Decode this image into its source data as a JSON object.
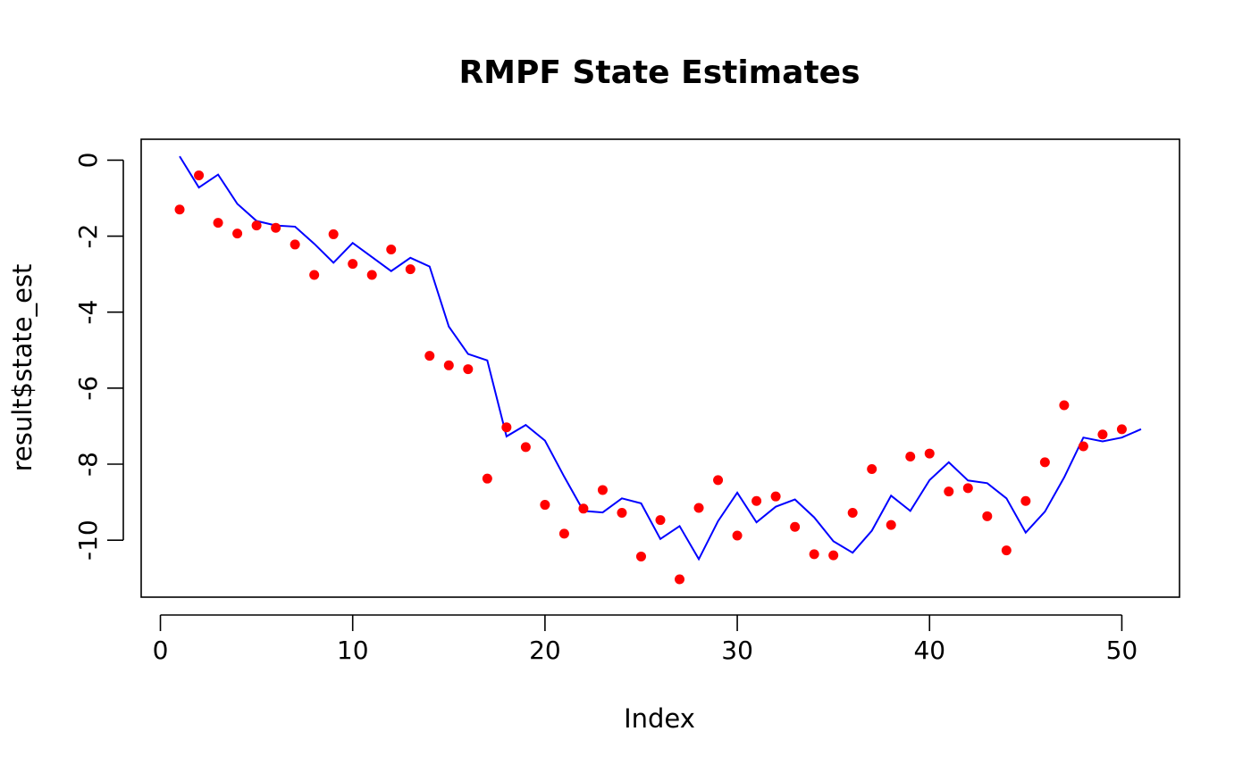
{
  "chart_data": {
    "type": "line",
    "title": "RMPF State Estimates",
    "xlabel": "Index",
    "ylabel": "result$state_est",
    "xlim": [
      -1,
      53
    ],
    "ylim": [
      -11.5,
      0.55
    ],
    "x_ticks": [
      0,
      10,
      20,
      30,
      40,
      50
    ],
    "y_ticks": [
      0,
      -2,
      -4,
      -6,
      -8,
      -10
    ],
    "grid": false,
    "series": [
      {
        "style": "line",
        "color": "#0000ff",
        "x": [
          1,
          2,
          3,
          4,
          5,
          6,
          7,
          8,
          9,
          10,
          11,
          12,
          13,
          14,
          15,
          16,
          17,
          18,
          19,
          20,
          21,
          22,
          23,
          24,
          25,
          26,
          27,
          28,
          29,
          30,
          31,
          32,
          33,
          34,
          35,
          36,
          37,
          38,
          39,
          40,
          41,
          42,
          43,
          44,
          45,
          46,
          47,
          48,
          49,
          50,
          51
        ],
        "values": [
          0.1,
          -0.72,
          -0.38,
          -1.15,
          -1.6,
          -1.72,
          -1.75,
          -2.2,
          -2.7,
          -2.18,
          -2.55,
          -2.92,
          -2.57,
          -2.8,
          -4.38,
          -5.1,
          -5.27,
          -7.27,
          -6.97,
          -7.38,
          -8.33,
          -9.23,
          -9.27,
          -8.9,
          -9.03,
          -9.97,
          -9.63,
          -10.5,
          -9.5,
          -8.75,
          -9.53,
          -9.12,
          -8.93,
          -9.4,
          -10.03,
          -10.33,
          -9.75,
          -8.83,
          -9.23,
          -8.42,
          -7.95,
          -8.43,
          -8.5,
          -8.9,
          -9.8,
          -9.25,
          -8.35,
          -7.3,
          -7.4,
          -7.3,
          -7.08
        ]
      },
      {
        "style": "points",
        "color": "#ff0000",
        "x": [
          1,
          2,
          3,
          4,
          5,
          6,
          7,
          8,
          9,
          10,
          11,
          12,
          13,
          14,
          15,
          16,
          17,
          18,
          19,
          20,
          21,
          22,
          23,
          24,
          25,
          26,
          27,
          28,
          29,
          30,
          31,
          32,
          33,
          34,
          35,
          36,
          37,
          38,
          39,
          40,
          41,
          42,
          43,
          44,
          45,
          46,
          47,
          48,
          49,
          50
        ],
        "values": [
          -1.3,
          -0.4,
          -1.65,
          -1.93,
          -1.72,
          -1.78,
          -2.22,
          -3.02,
          -1.95,
          -2.73,
          -3.02,
          -2.35,
          -2.87,
          -5.15,
          -5.4,
          -5.5,
          -8.38,
          -7.03,
          -7.55,
          -9.07,
          -9.83,
          -9.17,
          -8.68,
          -9.28,
          -10.43,
          -9.47,
          -11.03,
          -9.15,
          -8.42,
          -9.88,
          -8.97,
          -8.85,
          -9.65,
          -10.37,
          -10.4,
          -9.28,
          -8.13,
          -9.6,
          -7.8,
          -7.72,
          -8.72,
          -8.63,
          -9.37,
          -10.27,
          -8.97,
          -7.95,
          -6.45,
          -7.53,
          -7.22,
          -7.08
        ]
      }
    ]
  }
}
